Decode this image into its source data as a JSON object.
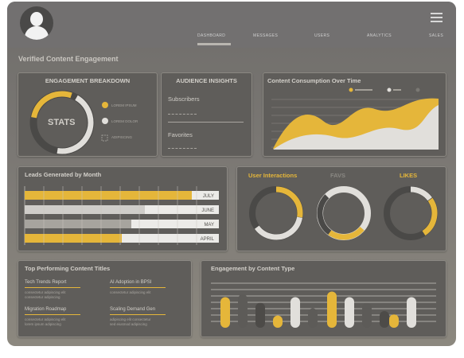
{
  "nav": {
    "items": [
      "DASHBOARD",
      "MESSAGES",
      "USERS",
      "ANALYTICS",
      "SALES"
    ]
  },
  "page_title": "Verified Content Engagement",
  "breakdown": {
    "title": "ENGAGEMENT BREAKDOWN",
    "center": "STATS",
    "legend": [
      "LOREM IPSUM",
      "LOREM DOLOR",
      "ADIPISCING"
    ]
  },
  "audience": {
    "title": "AUDIENCE INSIGHTS",
    "subscribers": "Subscribers",
    "favorites": "Favorites"
  },
  "consumption": {
    "title": "Content Consumption Over Time"
  },
  "leads": {
    "title": "Leads Generated by Month",
    "rows": [
      {
        "month": "JULY",
        "value": 0.86
      },
      {
        "month": "JUNE",
        "value": 0.62
      },
      {
        "month": "MAY",
        "value": 0.55
      },
      {
        "month": "APRIL",
        "value": 0.5
      }
    ]
  },
  "interactions": {
    "tabs": [
      "User Interactions",
      "FAVS",
      "LIKES"
    ]
  },
  "top_titles": {
    "title": "Top Performing Content Titles",
    "items": [
      {
        "name": "Tech Trends Report",
        "line1": "consectetur adipiscing elit",
        "line2": "consectetur adipiscing"
      },
      {
        "name": "AI Adoption in BPSI",
        "line1": "consectetur adipiscing elit",
        "line2": ""
      },
      {
        "name": "Migration Roadmap",
        "line1": "consectetur adipiscing elit",
        "line2": "lorem ipsum adipiscing"
      },
      {
        "name": "Scaling Demand Gen",
        "line1": "adipiscing elit consectetur",
        "line2": "sed eiusmod adipiscing"
      }
    ]
  },
  "engagement_type": {
    "title": "Engagement by Content Type"
  },
  "colors": {
    "accent": "#e5b63a",
    "panel": "#5f5d5a"
  }
}
